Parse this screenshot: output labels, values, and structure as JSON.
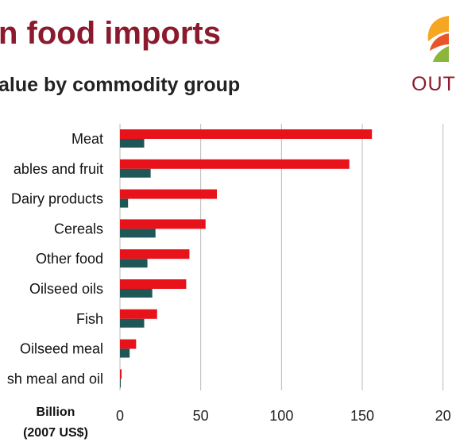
{
  "header": {
    "title": "n food imports",
    "subtitle": "alue by commodity group",
    "logo_text": "OUT",
    "logo_icon": "sunrise-logo-icon"
  },
  "colors": {
    "title": "#8b1a2e",
    "series_red": "#e8121b",
    "series_teal": "#1f5656",
    "grid": "#b9b9b9"
  },
  "chart_data": {
    "type": "bar",
    "orientation": "horizontal",
    "categories": [
      "Meat",
      "ables and fruit",
      "Dairy products",
      "Cereals",
      "Other food",
      "Oilseed oils",
      "Fish",
      "Oilseed meal",
      "sh meal and oil"
    ],
    "series": [
      {
        "values": [
          156,
          142,
          60,
          53,
          43,
          41,
          23,
          10,
          1
        ]
      },
      {
        "values": [
          15,
          19,
          5,
          22,
          17,
          20,
          15,
          6,
          0.5
        ]
      }
    ],
    "xticks": [
      "0",
      "50",
      "100",
      "150",
      "20"
    ],
    "xlabel_lines": [
      "Billion",
      "(2007 US$)"
    ],
    "xlim": [
      0,
      200
    ],
    "grid": true,
    "legend": "none"
  }
}
